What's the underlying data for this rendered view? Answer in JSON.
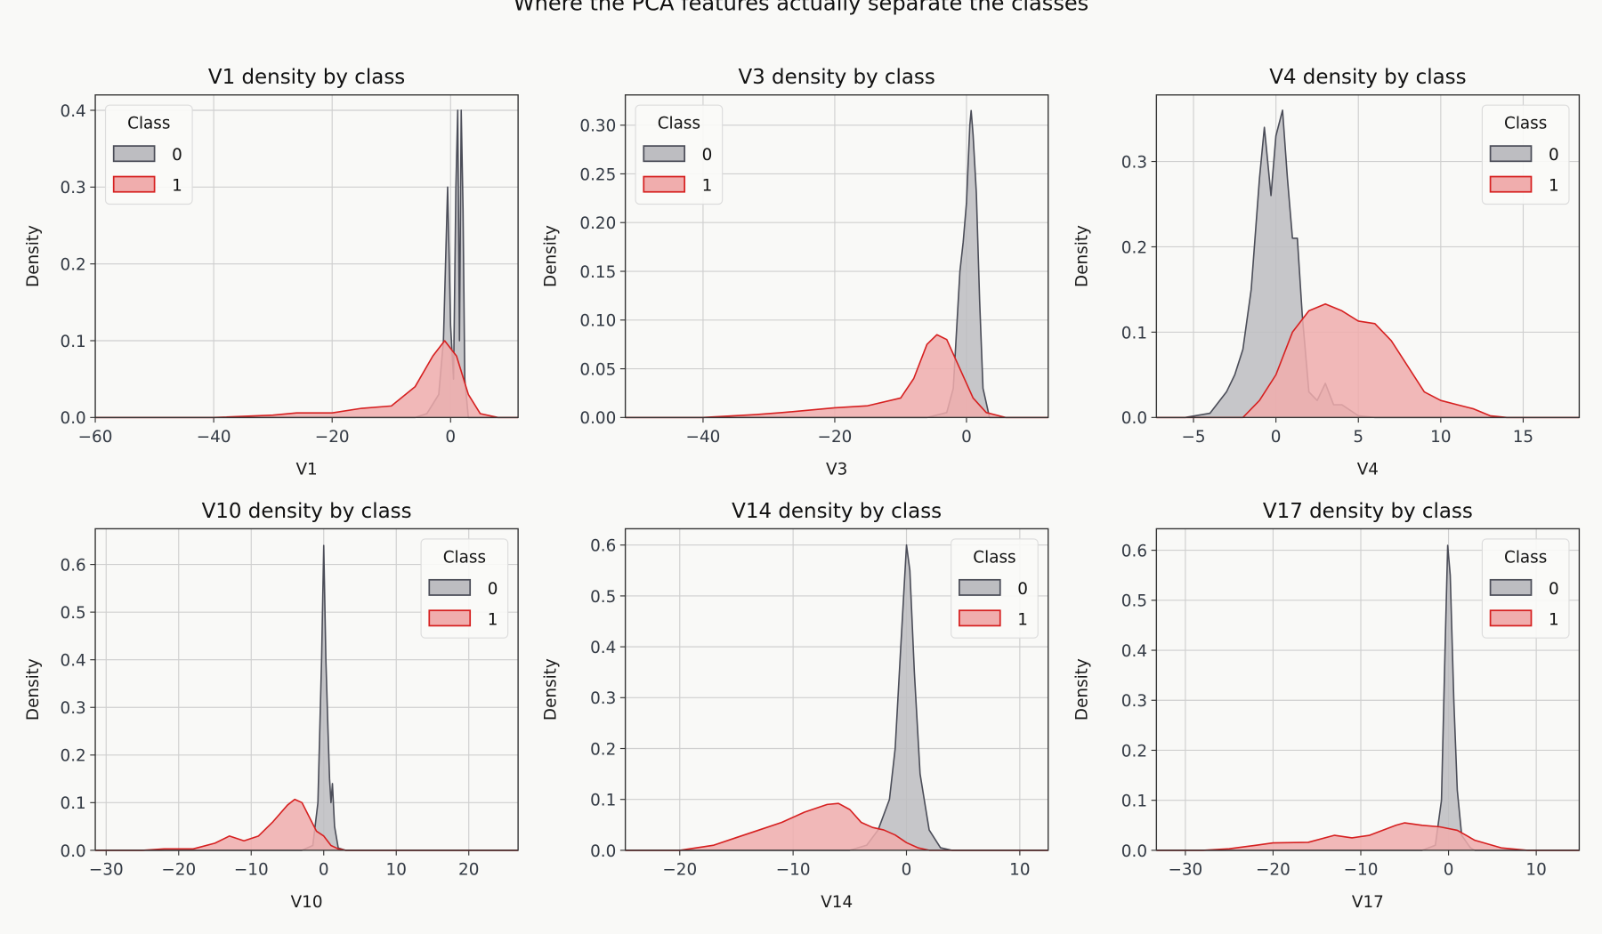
{
  "figure_title": "Where the PCA features actually separate the classes",
  "colors": {
    "class0_fill": "#bdbdc1",
    "class0_line": "#4b4d58",
    "class1_fill": "#f0adad",
    "class1_line": "#d62020",
    "background": "#f9f9f7"
  },
  "chart_data": [
    {
      "type": "area",
      "title": "V1 density by class",
      "xlabel": "V1",
      "ylabel": "Density",
      "xlim": [
        -60,
        11.4
      ],
      "ylim": [
        0,
        0.42
      ],
      "xticks": [
        -60,
        -40,
        -20,
        0
      ],
      "xtick_labels": [
        "−60",
        "−40",
        "−20",
        "0"
      ],
      "yticks": [
        0,
        0.1,
        0.2,
        0.3,
        0.4
      ],
      "ytick_labels": [
        "0.0",
        "0.1",
        "0.2",
        "0.3",
        "0.4"
      ],
      "legend": {
        "title": "Class",
        "placement": "top-left",
        "entries": [
          "0",
          "1"
        ]
      },
      "grid": true,
      "series": [
        {
          "name": "0",
          "points": [
            [
              -6,
              0
            ],
            [
              -4,
              0.005
            ],
            [
              -2,
              0.03
            ],
            [
              -1.2,
              0.1
            ],
            [
              -0.5,
              0.3
            ],
            [
              0,
              0.12
            ],
            [
              0.5,
              0.05
            ],
            [
              0.9,
              0.3
            ],
            [
              1.2,
              0.4
            ],
            [
              1.5,
              0.1
            ],
            [
              1.8,
              0.4
            ],
            [
              2.1,
              0.27
            ],
            [
              2.4,
              0.05
            ],
            [
              3,
              0
            ]
          ]
        },
        {
          "name": "1",
          "points": [
            [
              -40,
              0
            ],
            [
              -30,
              0.003
            ],
            [
              -26,
              0.006
            ],
            [
              -20,
              0.006
            ],
            [
              -15,
              0.012
            ],
            [
              -10,
              0.015
            ],
            [
              -6,
              0.04
            ],
            [
              -3,
              0.08
            ],
            [
              -1,
              0.1
            ],
            [
              1,
              0.08
            ],
            [
              3,
              0.03
            ],
            [
              5,
              0.005
            ],
            [
              8,
              0
            ]
          ]
        }
      ]
    },
    {
      "type": "area",
      "title": "V3 density by class",
      "xlabel": "V3",
      "ylabel": "Density",
      "xlim": [
        -51.8,
        12.4
      ],
      "ylim": [
        0,
        0.331
      ],
      "xticks": [
        -40,
        -20,
        0
      ],
      "xtick_labels": [
        "−40",
        "−20",
        "0"
      ],
      "yticks": [
        0,
        0.05,
        0.1,
        0.15,
        0.2,
        0.25,
        0.3
      ],
      "ytick_labels": [
        "0.00",
        "0.05",
        "0.10",
        "0.15",
        "0.20",
        "0.25",
        "0.30"
      ],
      "legend": {
        "title": "Class",
        "placement": "top-left",
        "entries": [
          "0",
          "1"
        ]
      },
      "grid": true,
      "series": [
        {
          "name": "0",
          "points": [
            [
              -6,
              0
            ],
            [
              -3,
              0.005
            ],
            [
              -2,
              0.03
            ],
            [
              -1,
              0.15
            ],
            [
              -0.5,
              0.18
            ],
            [
              0,
              0.22
            ],
            [
              0.5,
              0.3
            ],
            [
              0.7,
              0.315
            ],
            [
              1,
              0.29
            ],
            [
              1.5,
              0.23
            ],
            [
              2,
              0.12
            ],
            [
              2.5,
              0.03
            ],
            [
              3.5,
              0
            ]
          ]
        },
        {
          "name": "1",
          "points": [
            [
              -40,
              0
            ],
            [
              -32,
              0.003
            ],
            [
              -28,
              0.005
            ],
            [
              -20,
              0.01
            ],
            [
              -15,
              0.012
            ],
            [
              -10,
              0.02
            ],
            [
              -8,
              0.04
            ],
            [
              -6,
              0.075
            ],
            [
              -4.5,
              0.085
            ],
            [
              -3,
              0.08
            ],
            [
              -1,
              0.05
            ],
            [
              1,
              0.02
            ],
            [
              3,
              0.005
            ],
            [
              6,
              0
            ]
          ]
        }
      ]
    },
    {
      "type": "area",
      "title": "V4 density by class",
      "xlabel": "V4",
      "ylabel": "Density",
      "xlim": [
        -7.25,
        18.4
      ],
      "ylim": [
        0,
        0.378
      ],
      "xticks": [
        -5,
        0,
        5,
        10,
        15
      ],
      "xtick_labels": [
        "−5",
        "0",
        "5",
        "10",
        "15"
      ],
      "yticks": [
        0,
        0.1,
        0.2,
        0.3
      ],
      "ytick_labels": [
        "0.0",
        "0.1",
        "0.2",
        "0.3"
      ],
      "legend": {
        "title": "Class",
        "placement": "top-right",
        "entries": [
          "0",
          "1"
        ]
      },
      "grid": true,
      "series": [
        {
          "name": "0",
          "points": [
            [
              -5.5,
              0
            ],
            [
              -4,
              0.005
            ],
            [
              -3,
              0.03
            ],
            [
              -2.5,
              0.05
            ],
            [
              -2,
              0.08
            ],
            [
              -1.5,
              0.15
            ],
            [
              -1,
              0.28
            ],
            [
              -0.7,
              0.34
            ],
            [
              -0.3,
              0.26
            ],
            [
              0,
              0.33
            ],
            [
              0.4,
              0.36
            ],
            [
              0.7,
              0.28
            ],
            [
              1,
              0.21
            ],
            [
              1.3,
              0.21
            ],
            [
              1.6,
              0.12
            ],
            [
              2,
              0.03
            ],
            [
              2.5,
              0.02
            ],
            [
              3,
              0.04
            ],
            [
              3.5,
              0.015
            ],
            [
              4,
              0.015
            ],
            [
              5,
              0.002
            ],
            [
              6,
              0
            ]
          ]
        },
        {
          "name": "1",
          "points": [
            [
              -2,
              0
            ],
            [
              -1,
              0.02
            ],
            [
              0,
              0.05
            ],
            [
              1,
              0.1
            ],
            [
              2,
              0.125
            ],
            [
              3,
              0.133
            ],
            [
              4,
              0.125
            ],
            [
              5,
              0.113
            ],
            [
              6,
              0.11
            ],
            [
              7,
              0.09
            ],
            [
              8,
              0.06
            ],
            [
              9,
              0.03
            ],
            [
              10,
              0.02
            ],
            [
              11,
              0.015
            ],
            [
              12,
              0.01
            ],
            [
              13,
              0.002
            ],
            [
              14,
              0
            ]
          ]
        }
      ]
    },
    {
      "type": "area",
      "title": "V10 density by class",
      "xlabel": "V10",
      "ylabel": "Density",
      "xlim": [
        -31.5,
        26.8
      ],
      "ylim": [
        0,
        0.675
      ],
      "xticks": [
        -30,
        -20,
        -10,
        0,
        10,
        20
      ],
      "xtick_labels": [
        "−30",
        "−20",
        "−10",
        "0",
        "10",
        "20"
      ],
      "yticks": [
        0,
        0.1,
        0.2,
        0.3,
        0.4,
        0.5,
        0.6
      ],
      "ytick_labels": [
        "0.0",
        "0.1",
        "0.2",
        "0.3",
        "0.4",
        "0.5",
        "0.6"
      ],
      "legend": {
        "title": "Class",
        "placement": "top-right",
        "entries": [
          "0",
          "1"
        ]
      },
      "grid": true,
      "series": [
        {
          "name": "0",
          "points": [
            [
              -3,
              0
            ],
            [
              -1.5,
              0.01
            ],
            [
              -0.8,
              0.1
            ],
            [
              -0.3,
              0.4
            ],
            [
              0,
              0.64
            ],
            [
              0.3,
              0.4
            ],
            [
              0.6,
              0.25
            ],
            [
              0.8,
              0.15
            ],
            [
              1,
              0.1
            ],
            [
              1.2,
              0.14
            ],
            [
              1.5,
              0.05
            ],
            [
              2,
              0.005
            ],
            [
              3,
              0
            ]
          ]
        },
        {
          "name": "1",
          "points": [
            [
              -25,
              0
            ],
            [
              -22,
              0.003
            ],
            [
              -18,
              0.003
            ],
            [
              -15,
              0.015
            ],
            [
              -13,
              0.03
            ],
            [
              -11,
              0.02
            ],
            [
              -9,
              0.03
            ],
            [
              -7,
              0.06
            ],
            [
              -5,
              0.095
            ],
            [
              -4,
              0.107
            ],
            [
              -3,
              0.1
            ],
            [
              -2,
              0.07
            ],
            [
              -1,
              0.04
            ],
            [
              0,
              0.03
            ],
            [
              1,
              0.01
            ],
            [
              2,
              0.003
            ],
            [
              3,
              0
            ]
          ]
        }
      ]
    },
    {
      "type": "area",
      "title": "V14 density by class",
      "xlabel": "V14",
      "ylabel": "Density",
      "xlim": [
        -24.8,
        12.5
      ],
      "ylim": [
        0,
        0.632
      ],
      "xticks": [
        -20,
        -10,
        0,
        10
      ],
      "xtick_labels": [
        "−20",
        "−10",
        "0",
        "10"
      ],
      "yticks": [
        0,
        0.1,
        0.2,
        0.3,
        0.4,
        0.5,
        0.6
      ],
      "ytick_labels": [
        "0.0",
        "0.1",
        "0.2",
        "0.3",
        "0.4",
        "0.5",
        "0.6"
      ],
      "legend": {
        "title": "Class",
        "placement": "top-right",
        "entries": [
          "0",
          "1"
        ]
      },
      "grid": true,
      "series": [
        {
          "name": "0",
          "points": [
            [
              -5,
              0
            ],
            [
              -3.5,
              0.01
            ],
            [
              -2.5,
              0.04
            ],
            [
              -1.5,
              0.1
            ],
            [
              -1,
              0.2
            ],
            [
              -0.5,
              0.4
            ],
            [
              0,
              0.6
            ],
            [
              0.3,
              0.55
            ],
            [
              0.7,
              0.35
            ],
            [
              1.2,
              0.15
            ],
            [
              2,
              0.04
            ],
            [
              3,
              0.005
            ],
            [
              4,
              0
            ]
          ]
        },
        {
          "name": "1",
          "points": [
            [
              -20,
              0
            ],
            [
              -17,
              0.01
            ],
            [
              -15,
              0.025
            ],
            [
              -13,
              0.04
            ],
            [
              -11,
              0.055
            ],
            [
              -9,
              0.075
            ],
            [
              -7,
              0.09
            ],
            [
              -6,
              0.092
            ],
            [
              -5,
              0.08
            ],
            [
              -4,
              0.055
            ],
            [
              -3,
              0.045
            ],
            [
              -2,
              0.04
            ],
            [
              -1,
              0.03
            ],
            [
              0,
              0.015
            ],
            [
              1,
              0.005
            ],
            [
              2,
              0
            ]
          ]
        }
      ]
    },
    {
      "type": "area",
      "title": "V17 density by class",
      "xlabel": "V17",
      "ylabel": "Density",
      "xlim": [
        -33.3,
        14.9
      ],
      "ylim": [
        0,
        0.643
      ],
      "xticks": [
        -30,
        -20,
        -10,
        0,
        10
      ],
      "xtick_labels": [
        "−30",
        "−20",
        "−10",
        "0",
        "10"
      ],
      "yticks": [
        0,
        0.1,
        0.2,
        0.3,
        0.4,
        0.5,
        0.6
      ],
      "ytick_labels": [
        "0.0",
        "0.1",
        "0.2",
        "0.3",
        "0.4",
        "0.5",
        "0.6"
      ],
      "legend": {
        "title": "Class",
        "placement": "top-right",
        "entries": [
          "0",
          "1"
        ]
      },
      "grid": true,
      "series": [
        {
          "name": "0",
          "points": [
            [
              -3,
              0
            ],
            [
              -1.5,
              0.01
            ],
            [
              -0.8,
              0.1
            ],
            [
              -0.4,
              0.4
            ],
            [
              -0.1,
              0.61
            ],
            [
              0.2,
              0.55
            ],
            [
              0.6,
              0.3
            ],
            [
              1,
              0.12
            ],
            [
              1.5,
              0.03
            ],
            [
              2.5,
              0.005
            ],
            [
              3,
              0
            ]
          ]
        },
        {
          "name": "1",
          "points": [
            [
              -28,
              0
            ],
            [
              -25,
              0.003
            ],
            [
              -22,
              0.01
            ],
            [
              -20,
              0.015
            ],
            [
              -16,
              0.016
            ],
            [
              -13,
              0.03
            ],
            [
              -11,
              0.025
            ],
            [
              -9,
              0.03
            ],
            [
              -6,
              0.05
            ],
            [
              -5,
              0.055
            ],
            [
              -3,
              0.05
            ],
            [
              -1,
              0.047
            ],
            [
              1,
              0.04
            ],
            [
              3,
              0.02
            ],
            [
              6,
              0.005
            ],
            [
              9,
              0
            ]
          ]
        }
      ]
    }
  ]
}
